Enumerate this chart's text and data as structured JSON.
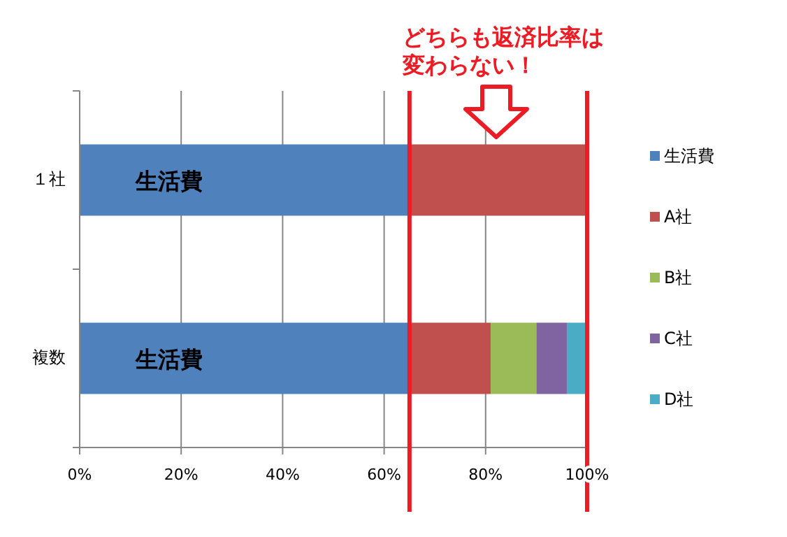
{
  "chart_data": {
    "type": "bar",
    "orientation": "horizontal",
    "stacked": true,
    "categories": [
      "１社",
      "複数"
    ],
    "series": [
      {
        "name": "生活費",
        "color": "#4f81bd",
        "values": [
          65,
          65
        ]
      },
      {
        "name": "A社",
        "color": "#c0504d",
        "values": [
          35,
          16
        ]
      },
      {
        "name": "B社",
        "color": "#9bbb59",
        "values": [
          0,
          9
        ]
      },
      {
        "name": "C社",
        "color": "#8064a2",
        "values": [
          0,
          6
        ]
      },
      {
        "name": "D社",
        "color": "#4bacc6",
        "values": [
          0,
          4
        ]
      }
    ],
    "xlim": [
      0,
      100
    ],
    "xticks": [
      {
        "value": 0,
        "label": "0%"
      },
      {
        "value": 20,
        "label": "20%"
      },
      {
        "value": 40,
        "label": "40%"
      },
      {
        "value": 60,
        "label": "60%"
      },
      {
        "value": 80,
        "label": "80%"
      },
      {
        "value": 100,
        "label": "100%"
      }
    ],
    "grid": "x",
    "legend": "right",
    "ref_lines": [
      {
        "axis": "x",
        "value": 65,
        "color": "#ed1c24"
      },
      {
        "axis": "x",
        "value": 100,
        "color": "#ed1c24"
      }
    ],
    "annotations": [
      "どちらも返済比率は変わらない！",
      "生活費",
      "生活費"
    ]
  }
}
